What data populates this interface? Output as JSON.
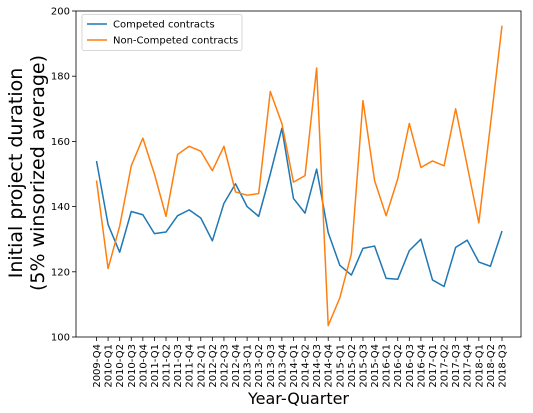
{
  "chart_data": {
    "type": "line",
    "title": "",
    "xlabel": "Year-Quarter",
    "ylabel_lines": [
      "Initial project duration",
      "(5% winsorized average)"
    ],
    "ylim": [
      100,
      200
    ],
    "yticks": [
      100,
      120,
      140,
      160,
      180,
      200
    ],
    "grid": false,
    "legend_position": "top-left",
    "categories": [
      "2009-Q4",
      "2010-Q1",
      "2010-Q2",
      "2010-Q3",
      "2010-Q4",
      "2011-Q1",
      "2011-Q2",
      "2011-Q3",
      "2011-Q4",
      "2012-Q1",
      "2012-Q2",
      "2012-Q3",
      "2012-Q4",
      "2013-Q1",
      "2013-Q2",
      "2013-Q3",
      "2013-Q4",
      "2014-Q1",
      "2014-Q2",
      "2014-Q3",
      "2014-Q4",
      "2015-Q1",
      "2015-Q2",
      "2015-Q3",
      "2015-Q4",
      "2016-Q1",
      "2016-Q2",
      "2016-Q3",
      "2016-Q4",
      "2017-Q1",
      "2017-Q2",
      "2017-Q3",
      "2017-Q4",
      "2018-Q1",
      "2018-Q2",
      "2018-Q3"
    ],
    "series": [
      {
        "name": "Competed contracts",
        "color": "#1f77b4",
        "values": [
          154,
          134.5,
          126,
          138.5,
          137.5,
          131.7,
          132.2,
          137.2,
          139,
          136.5,
          129.5,
          141,
          147,
          140,
          137,
          150,
          164,
          142.5,
          138,
          151.5,
          132,
          122,
          119,
          127.2,
          127.9,
          118,
          117.7,
          126.5,
          130,
          117.5,
          115.5,
          127.5,
          129.7,
          123,
          121.7,
          132.5
        ]
      },
      {
        "name": "Non-Competed contracts",
        "color": "#ff7f0e",
        "values": [
          148,
          121,
          134,
          152.5,
          161,
          150,
          137,
          156,
          158.5,
          157,
          151,
          158.5,
          144.5,
          143.5,
          144,
          175.3,
          165.5,
          147.5,
          149.5,
          182.5,
          103.5,
          112,
          125.5,
          172.5,
          148,
          137.2,
          148.5,
          165.5,
          152,
          154,
          152.5,
          170,
          152.5,
          135,
          165,
          195.5
        ]
      }
    ]
  }
}
